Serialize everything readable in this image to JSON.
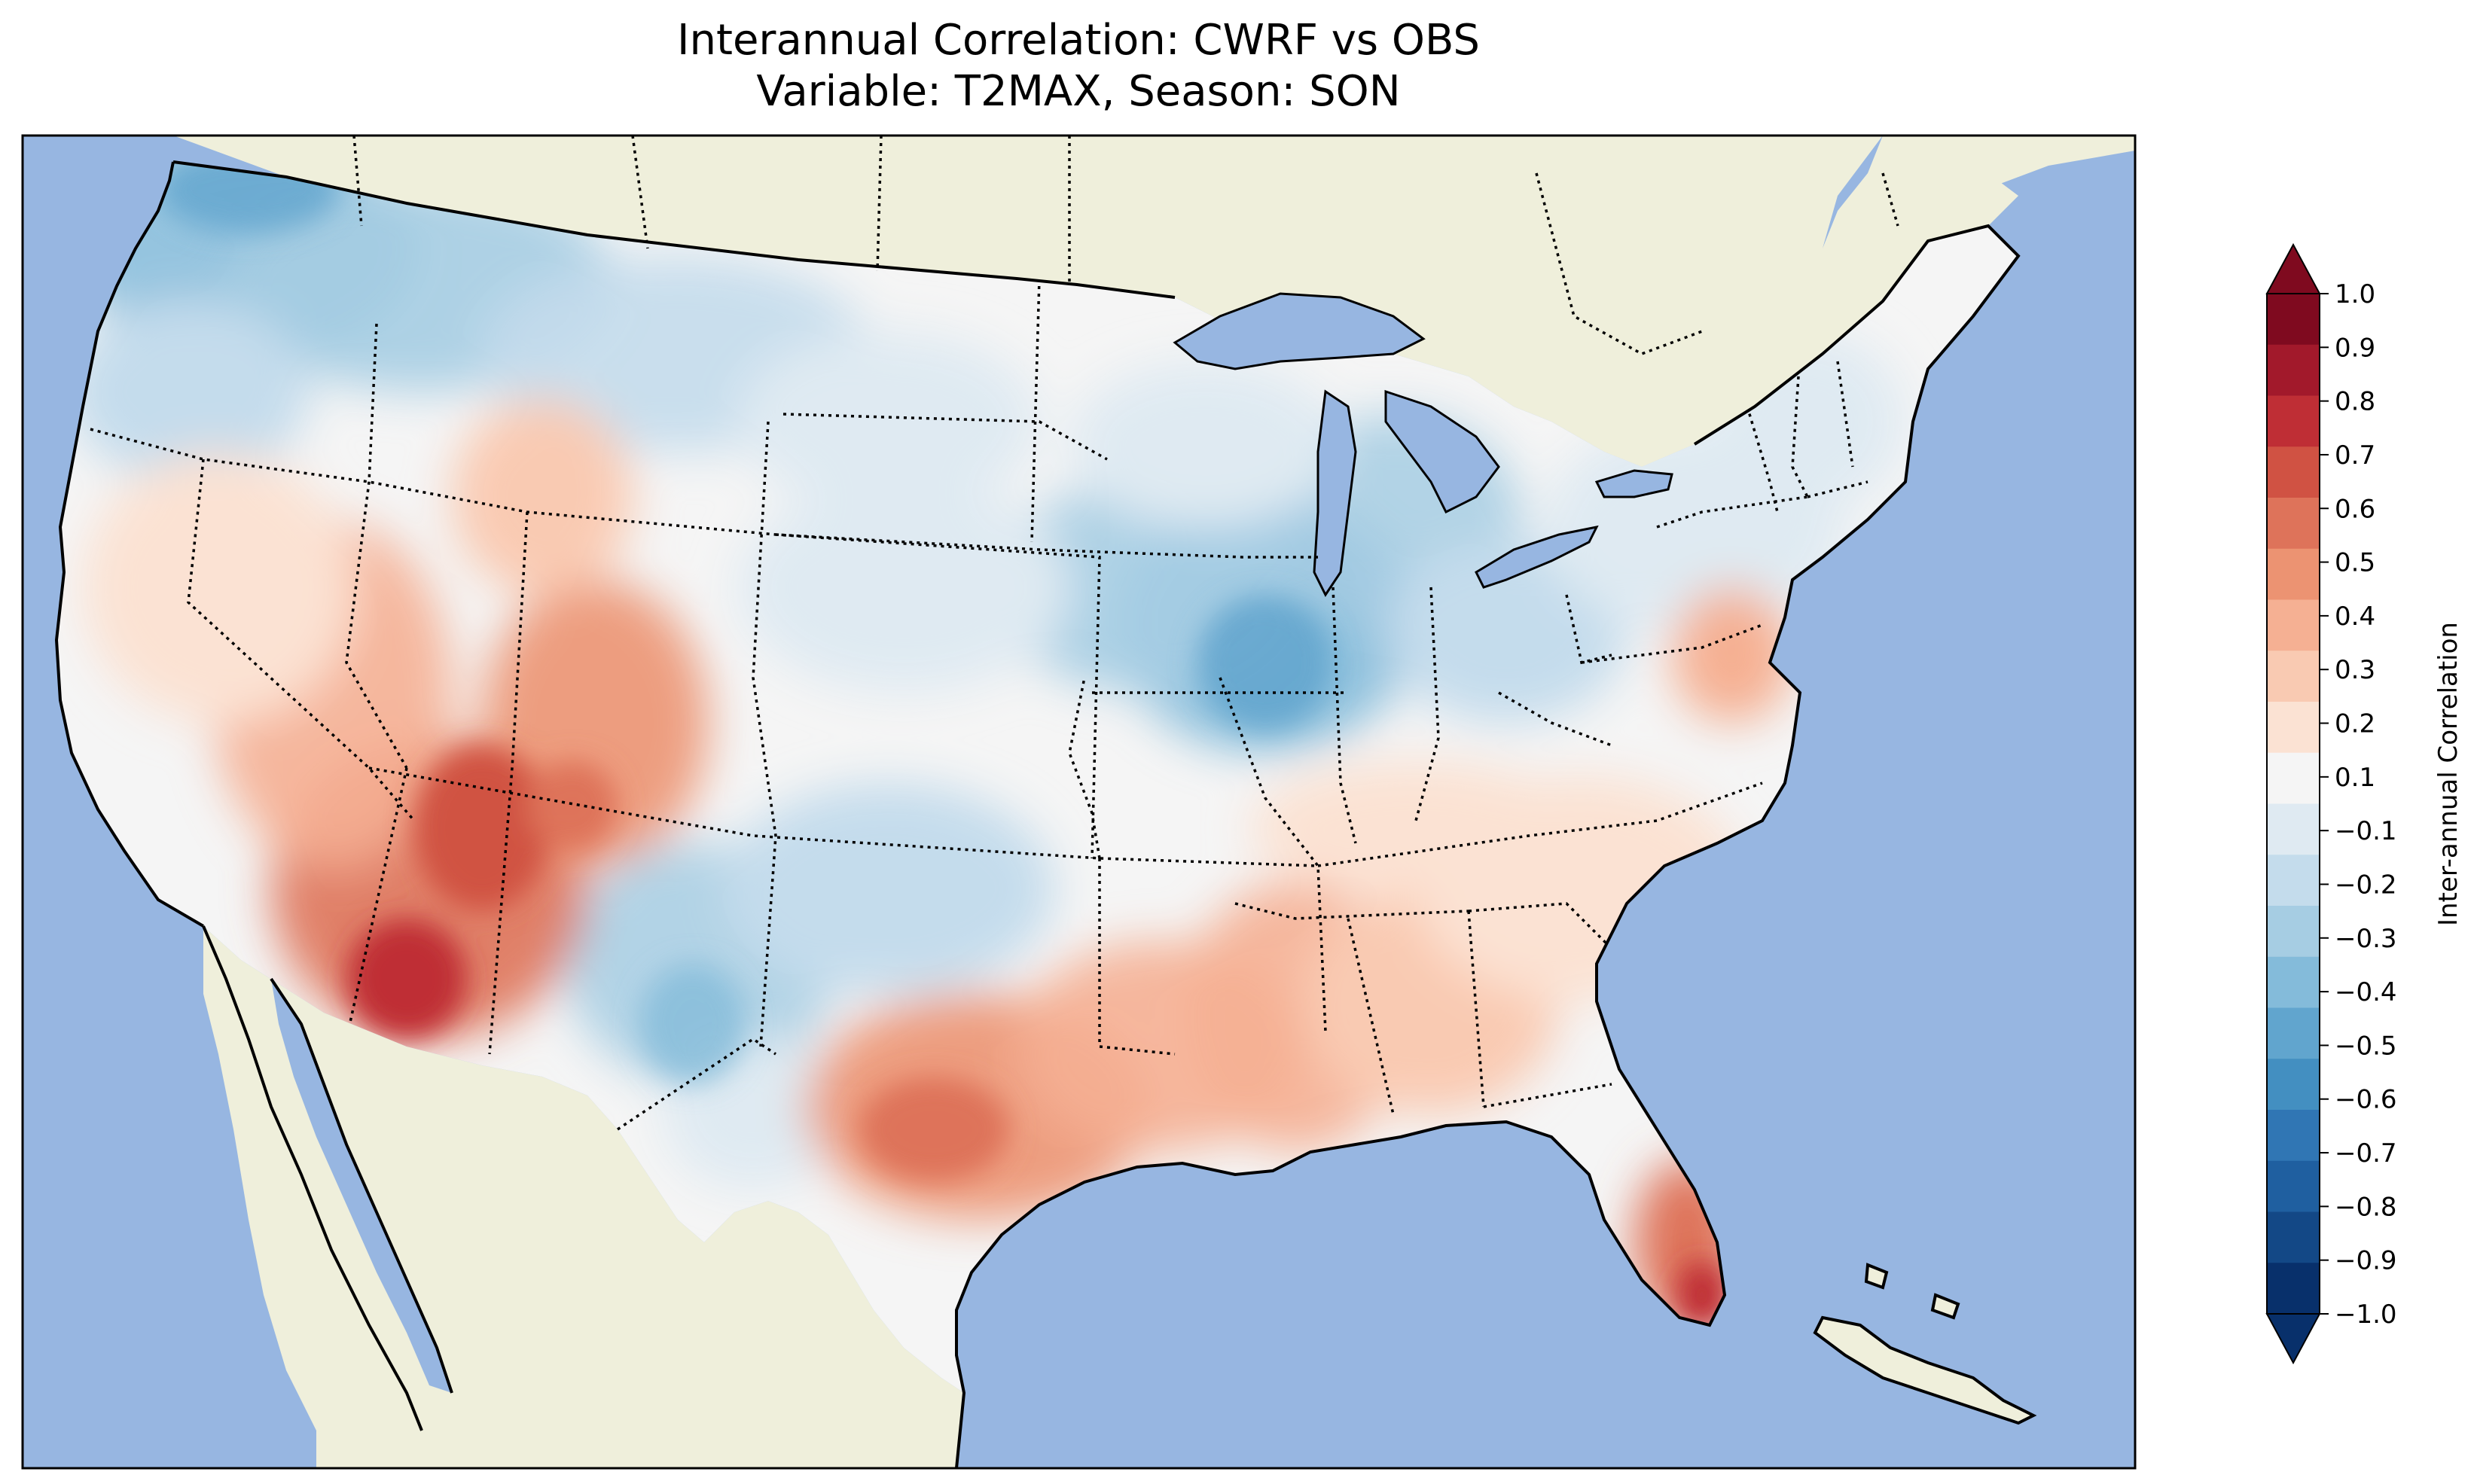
{
  "title_line1": "Interannual Correlation: CWRF vs OBS",
  "title_line2": "Variable: T2MAX, Season: SON",
  "colorbar": {
    "label": "Inter-annual Correlation",
    "ticks": [
      "1.0",
      "0.9",
      "0.8",
      "0.7",
      "0.6",
      "0.5",
      "0.4",
      "0.3",
      "0.2",
      "0.1",
      "−0.1",
      "−0.2",
      "−0.3",
      "−0.4",
      "−0.5",
      "−0.6",
      "−0.7",
      "−0.8",
      "−0.9",
      "−1.0"
    ],
    "colors": [
      "#7f0a1f",
      "#a2192b",
      "#bf2e35",
      "#d05243",
      "#de735a",
      "#ec9372",
      "#f5b093",
      "#f9cab2",
      "#fbe2d3",
      "#f5f5f5",
      "#dfeaf2",
      "#c4dcec",
      "#a6cde3",
      "#84bbda",
      "#61a5ce",
      "#438fc1",
      "#3076b4",
      "#1f5fa0",
      "#134886",
      "#08306b"
    ],
    "extend": "both"
  },
  "map": {
    "ocean_color": "#97b6e1",
    "land_color": "#efefdb",
    "field_extent": "continental US (CONUS)",
    "regions": [
      {
        "name": "Pacific Northwest",
        "value": -0.35
      },
      {
        "name": "Northern Rockies",
        "value": -0.2
      },
      {
        "name": "Southwest (Arizona)",
        "value": 0.6
      },
      {
        "name": "Southern Arizona",
        "value": 0.75
      },
      {
        "name": "Four Corners",
        "value": 0.45
      },
      {
        "name": "Nevada / Great Basin",
        "value": 0.25
      },
      {
        "name": "Central Plains",
        "value": -0.15
      },
      {
        "name": "New Mexico / W Texas",
        "value": -0.25
      },
      {
        "name": "Upper Midwest / Illinois",
        "value": -0.5
      },
      {
        "name": "Michigan / Ohio Valley",
        "value": -0.35
      },
      {
        "name": "Texas interior",
        "value": 0.45
      },
      {
        "name": "Louisiana / Mississippi",
        "value": 0.4
      },
      {
        "name": "Southeast",
        "value": 0.2
      },
      {
        "name": "South Florida",
        "value": 0.8
      },
      {
        "name": "Northeast",
        "value": -0.15
      },
      {
        "name": "Chesapeake",
        "value": 0.4
      }
    ]
  }
}
